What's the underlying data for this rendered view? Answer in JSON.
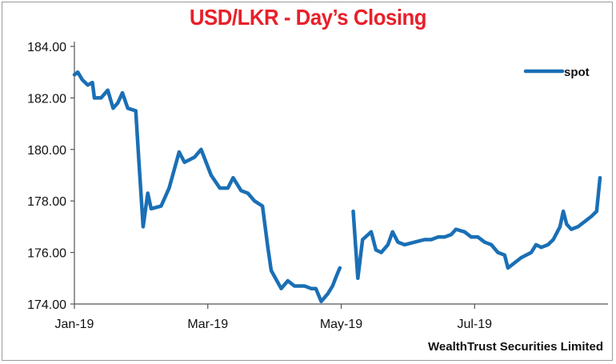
{
  "chart_data": {
    "type": "line",
    "title": "USD/LKR - Day’s Closing",
    "xlabel": "",
    "ylabel": "",
    "source": "WealthTrust Securities Limited",
    "ylim": [
      174.0,
      184.0
    ],
    "yticks": [
      "184.00",
      "182.00",
      "180.00",
      "178.00",
      "176.00",
      "174.00"
    ],
    "xticks": [
      {
        "label": "Jan-19",
        "t": 0
      },
      {
        "label": "Mar-19",
        "t": 2
      },
      {
        "label": "May-19",
        "t": 4
      },
      {
        "label": "Jul-19",
        "t": 6
      }
    ],
    "xlim": [
      0,
      8
    ],
    "legend_position": "top-right",
    "grid": false,
    "line_color": "#1a6fb5",
    "series": [
      {
        "name": "spot",
        "segments": [
          [
            [
              0.0,
              182.9
            ],
            [
              0.05,
              183.0
            ],
            [
              0.12,
              182.7
            ],
            [
              0.2,
              182.5
            ],
            [
              0.27,
              182.6
            ],
            [
              0.3,
              182.0
            ],
            [
              0.4,
              182.0
            ],
            [
              0.5,
              182.3
            ],
            [
              0.58,
              181.6
            ],
            [
              0.65,
              181.8
            ],
            [
              0.72,
              182.2
            ],
            [
              0.8,
              181.6
            ],
            [
              0.92,
              181.5
            ],
            [
              0.97,
              179.4
            ],
            [
              1.03,
              177.0
            ],
            [
              1.1,
              178.3
            ],
            [
              1.15,
              177.7
            ],
            [
              1.3,
              177.8
            ],
            [
              1.42,
              178.5
            ],
            [
              1.57,
              179.9
            ],
            [
              1.65,
              179.5
            ],
            [
              1.8,
              179.7
            ],
            [
              1.9,
              180.0
            ],
            [
              2.05,
              179.0
            ],
            [
              2.18,
              178.5
            ],
            [
              2.3,
              178.5
            ],
            [
              2.38,
              178.9
            ],
            [
              2.5,
              178.4
            ],
            [
              2.6,
              178.3
            ],
            [
              2.7,
              178.0
            ],
            [
              2.82,
              177.8
            ],
            [
              2.9,
              176.2
            ],
            [
              2.95,
              175.3
            ],
            [
              3.1,
              174.6
            ],
            [
              3.2,
              174.9
            ],
            [
              3.3,
              174.7
            ],
            [
              3.45,
              174.7
            ],
            [
              3.55,
              174.6
            ],
            [
              3.62,
              174.6
            ],
            [
              3.7,
              174.1
            ],
            [
              3.8,
              174.4
            ],
            [
              3.87,
              174.7
            ],
            [
              3.93,
              175.1
            ],
            [
              3.98,
              175.4
            ]
          ],
          [
            [
              4.18,
              177.6
            ],
            [
              4.25,
              175.0
            ],
            [
              4.32,
              176.5
            ],
            [
              4.45,
              176.8
            ],
            [
              4.52,
              176.1
            ],
            [
              4.6,
              176.0
            ],
            [
              4.7,
              176.3
            ],
            [
              4.77,
              176.8
            ],
            [
              4.85,
              176.4
            ],
            [
              4.95,
              176.3
            ],
            [
              5.1,
              176.4
            ],
            [
              5.25,
              176.5
            ],
            [
              5.35,
              176.5
            ],
            [
              5.45,
              176.6
            ],
            [
              5.55,
              176.6
            ],
            [
              5.65,
              176.7
            ],
            [
              5.72,
              176.9
            ],
            [
              5.85,
              176.8
            ],
            [
              5.95,
              176.6
            ],
            [
              6.05,
              176.6
            ],
            [
              6.15,
              176.4
            ],
            [
              6.25,
              176.3
            ],
            [
              6.35,
              176.0
            ],
            [
              6.45,
              175.9
            ],
            [
              6.5,
              175.4
            ],
            [
              6.6,
              175.6
            ],
            [
              6.7,
              175.8
            ],
            [
              6.85,
              176.0
            ],
            [
              6.92,
              176.3
            ],
            [
              7.0,
              176.2
            ],
            [
              7.1,
              176.3
            ],
            [
              7.18,
              176.5
            ],
            [
              7.28,
              177.0
            ],
            [
              7.33,
              177.6
            ],
            [
              7.38,
              177.1
            ],
            [
              7.45,
              176.9
            ],
            [
              7.55,
              177.0
            ],
            [
              7.65,
              177.2
            ],
            [
              7.75,
              177.4
            ],
            [
              7.83,
              177.6
            ],
            [
              7.88,
              178.9
            ]
          ]
        ]
      }
    ]
  }
}
